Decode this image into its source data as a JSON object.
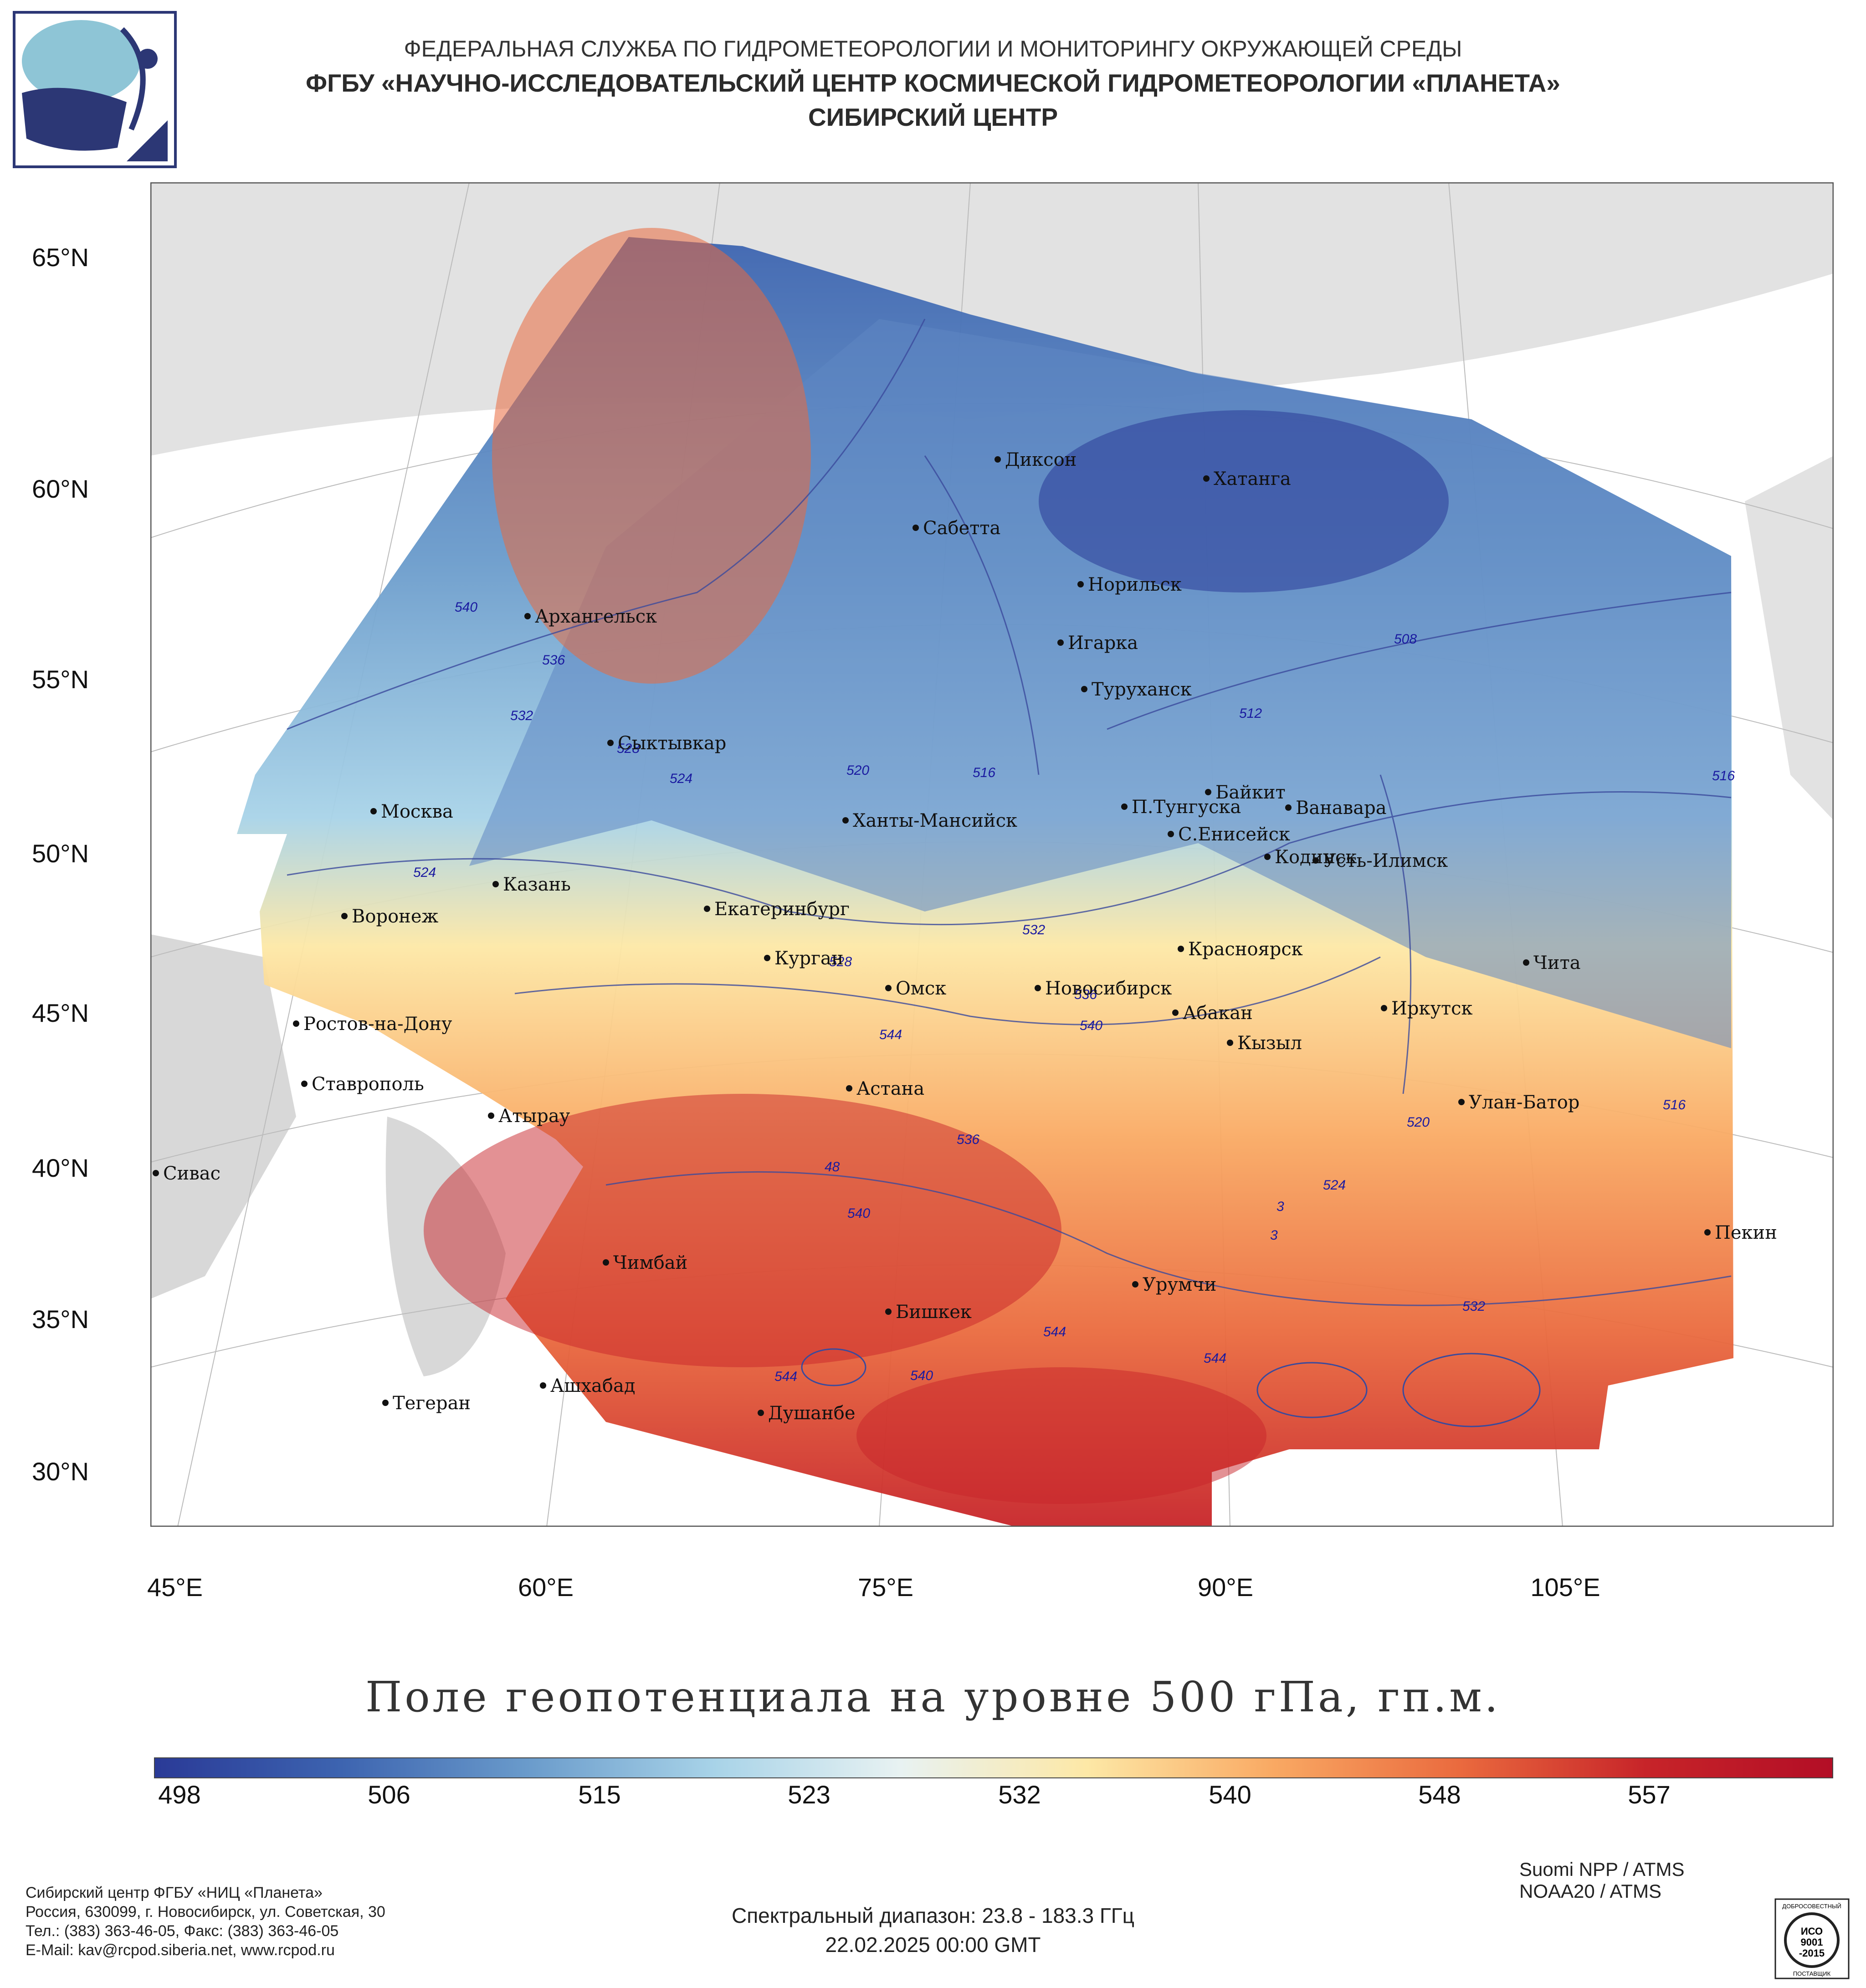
{
  "header": {
    "agency": "ФЕДЕРАЛЬНАЯ СЛУЖБА ПО ГИДРОМЕТЕОРОЛОГИИ И МОНИТОРИНГУ ОКРУЖАЮЩЕЙ СРЕДЫ",
    "center_full": "ФГБУ «НАУЧНО-ИССЛЕДОВАТЕЛЬСКИЙ ЦЕНТР КОСМИЧЕСКОЙ ГИДРОМЕТЕОРОЛОГИИ «ПЛАНЕТА»",
    "center_short": "СИБИРСКИЙ ЦЕНТР",
    "logo_icon": "planeta-logo-icon"
  },
  "map": {
    "lat_labels": [
      "65°N",
      "60°N",
      "55°N",
      "50°N",
      "45°N",
      "40°N",
      "35°N",
      "30°N"
    ],
    "lon_labels": [
      "45°E",
      "60°E",
      "75°E",
      "90°E",
      "105°E"
    ],
    "cities": [
      {
        "name": "Диксон"
      },
      {
        "name": "Хатанга"
      },
      {
        "name": "Сабетта"
      },
      {
        "name": "Норильск"
      },
      {
        "name": "Архангельск"
      },
      {
        "name": "Игарка"
      },
      {
        "name": "Туруханск"
      },
      {
        "name": "Сыктывкар"
      },
      {
        "name": "Байкит"
      },
      {
        "name": "П.Тунгуска"
      },
      {
        "name": "Ванавара"
      },
      {
        "name": "Москва"
      },
      {
        "name": "Ханты-Мансийск"
      },
      {
        "name": "С.Енисейск"
      },
      {
        "name": "Кодинск"
      },
      {
        "name": "Усть-Илимск"
      },
      {
        "name": "Казань"
      },
      {
        "name": "Воронеж"
      },
      {
        "name": "Екатеринбург"
      },
      {
        "name": "Красноярск"
      },
      {
        "name": "Курган"
      },
      {
        "name": "Чита"
      },
      {
        "name": "Омск"
      },
      {
        "name": "Новосибирск"
      },
      {
        "name": "Иркутск"
      },
      {
        "name": "Ростов-на-Дону"
      },
      {
        "name": "Абакан"
      },
      {
        "name": "Кызыл"
      },
      {
        "name": "Ставрополь"
      },
      {
        "name": "Астана"
      },
      {
        "name": "Улан-Батор"
      },
      {
        "name": "Атырау"
      },
      {
        "name": "Сивас"
      },
      {
        "name": "Пекин"
      },
      {
        "name": "Чимбай"
      },
      {
        "name": "Урумчи"
      },
      {
        "name": "Бишкек"
      },
      {
        "name": "Ашхабад"
      },
      {
        "name": "Тегеран"
      },
      {
        "name": "Душанбе"
      }
    ],
    "contour_labels": [
      "540",
      "536",
      "532",
      "528",
      "524",
      "520",
      "516",
      "512",
      "508",
      "524",
      "528",
      "532",
      "536",
      "540",
      "544",
      "48",
      "540",
      "536",
      "544",
      "540",
      "544",
      "532",
      "524",
      "520",
      "516",
      "516",
      "544",
      "3",
      "3"
    ]
  },
  "title": "Поле геопотенциала на уровне 500 гПа, гп.м.",
  "colorbar": {
    "ticks": [
      "498",
      "506",
      "515",
      "523",
      "532",
      "540",
      "548",
      "557"
    ],
    "colors": [
      "#2a3a97",
      "#3d64b0",
      "#6a9bcb",
      "#a8d3e8",
      "#e8f2f2",
      "#fde8a6",
      "#f9a963",
      "#ea6a3e",
      "#c72429",
      "#b30e26"
    ]
  },
  "footer": {
    "org_line1": "Сибирский центр ФГБУ «НИЦ «Планета»",
    "org_line2": "Россия, 630099, г. Новосибирск, ул. Советская, 30",
    "org_line3": "Тел.: (383) 363-46-05, Факс: (383) 363-46-05",
    "org_line4": "E-Mail: kav@rcpod.siberia.net, www.rcpod.ru",
    "sat1": "Suomi NPP / ATMS",
    "sat2": "NOAA20 / ATMS",
    "spectral": "Спектральный диапазон: 23.8 - 183.3 ГГц",
    "date": "22.02.2025 00:00 GMT",
    "iso_badge_top": "ДОБРОСОВЕСТНЫЙ",
    "iso_line1": "ИСО",
    "iso_line2": "9001",
    "iso_line3": "-2015",
    "iso_badge_bottom": "ПОСТАВЩИК"
  }
}
